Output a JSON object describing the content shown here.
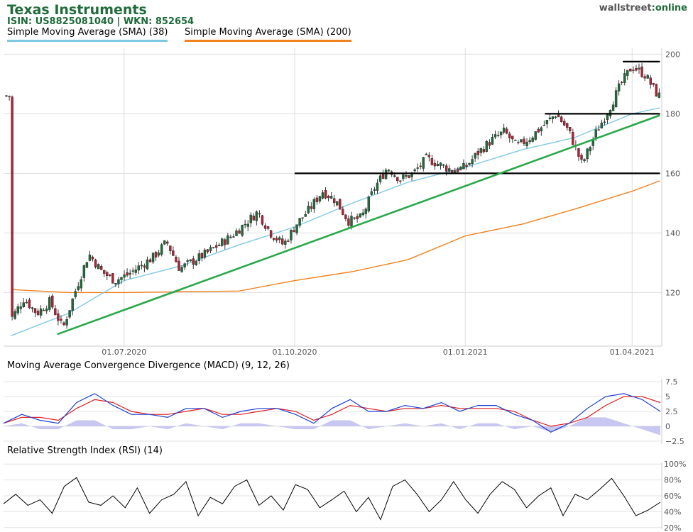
{
  "header": {
    "title": "Texas Instruments",
    "isin_line": "ISIN: US8825081040  | WKN: 852654",
    "sma38_label": "Simple Moving Average (SMA) (38)",
    "sma200_label": "Simple Moving Average (SMA) (200)",
    "logo_part1": "wallstreet",
    "logo_part2": ":online"
  },
  "colors": {
    "brand": "#1f6b3a",
    "up": "#1f6b3a",
    "down": "#b22234",
    "sma38": "#7ec8e3",
    "sma200": "#f0821e",
    "trendline": "#2aa84a",
    "macd": "#1f3fd6",
    "signal": "#e02020",
    "histogram": "#c7c7f2",
    "rsi": "#000000"
  },
  "chart_data": [
    {
      "type": "candlestick",
      "title": "Texas Instruments",
      "x_tick_labels": [
        "01.07.2020",
        "01.10.2020",
        "01.01.2021",
        "01.04.2021"
      ],
      "y_ticks": [
        120,
        140,
        160,
        180,
        200
      ],
      "ylim": [
        102,
        202
      ],
      "grid": true,
      "price_path": [
        {
          "date": "2020-05-01",
          "close": 111
        },
        {
          "date": "2020-05-08",
          "close": 118
        },
        {
          "date": "2020-05-15",
          "close": 113
        },
        {
          "date": "2020-05-22",
          "close": 117
        },
        {
          "date": "2020-05-29",
          "close": 108
        },
        {
          "date": "2020-06-05",
          "close": 121
        },
        {
          "date": "2020-06-12",
          "close": 133
        },
        {
          "date": "2020-06-19",
          "close": 127
        },
        {
          "date": "2020-06-26",
          "close": 124
        },
        {
          "date": "2020-07-03",
          "close": 126
        },
        {
          "date": "2020-07-17",
          "close": 132
        },
        {
          "date": "2020-07-24",
          "close": 137
        },
        {
          "date": "2020-07-31",
          "close": 128
        },
        {
          "date": "2020-08-14",
          "close": 133
        },
        {
          "date": "2020-08-28",
          "close": 139
        },
        {
          "date": "2020-09-04",
          "close": 143
        },
        {
          "date": "2020-09-11",
          "close": 147
        },
        {
          "date": "2020-09-18",
          "close": 140
        },
        {
          "date": "2020-09-25",
          "close": 136
        },
        {
          "date": "2020-10-02",
          "close": 143
        },
        {
          "date": "2020-10-09",
          "close": 148
        },
        {
          "date": "2020-10-16",
          "close": 154
        },
        {
          "date": "2020-10-23",
          "close": 151
        },
        {
          "date": "2020-10-30",
          "close": 144
        },
        {
          "date": "2020-11-06",
          "close": 145
        },
        {
          "date": "2020-11-13",
          "close": 155
        },
        {
          "date": "2020-11-20",
          "close": 162
        },
        {
          "date": "2020-11-27",
          "close": 158
        },
        {
          "date": "2020-12-04",
          "close": 160
        },
        {
          "date": "2020-12-11",
          "close": 165
        },
        {
          "date": "2020-12-18",
          "close": 163
        },
        {
          "date": "2020-12-25",
          "close": 161
        },
        {
          "date": "2021-01-01",
          "close": 162
        },
        {
          "date": "2021-01-08",
          "close": 167
        },
        {
          "date": "2021-01-15",
          "close": 171
        },
        {
          "date": "2021-01-22",
          "close": 174
        },
        {
          "date": "2021-01-29",
          "close": 169
        },
        {
          "date": "2021-02-05",
          "close": 172
        },
        {
          "date": "2021-02-12",
          "close": 176
        },
        {
          "date": "2021-02-19",
          "close": 180
        },
        {
          "date": "2021-02-26",
          "close": 174
        },
        {
          "date": "2021-03-05",
          "close": 163
        },
        {
          "date": "2021-03-12",
          "close": 173
        },
        {
          "date": "2021-03-19",
          "close": 181
        },
        {
          "date": "2021-03-26",
          "close": 190
        },
        {
          "date": "2021-04-01",
          "close": 196
        },
        {
          "date": "2021-04-08",
          "close": 193
        },
        {
          "date": "2021-04-15",
          "close": 186
        }
      ],
      "sma38_path": [
        {
          "date": "2020-05-01",
          "value": 105.5
        },
        {
          "date": "2020-06-01",
          "value": 113
        },
        {
          "date": "2020-07-01",
          "value": 124
        },
        {
          "date": "2020-08-01",
          "value": 129
        },
        {
          "date": "2020-09-01",
          "value": 136
        },
        {
          "date": "2020-10-01",
          "value": 142
        },
        {
          "date": "2020-11-01",
          "value": 150
        },
        {
          "date": "2020-12-01",
          "value": 157
        },
        {
          "date": "2021-01-01",
          "value": 162
        },
        {
          "date": "2021-02-01",
          "value": 168
        },
        {
          "date": "2021-03-01",
          "value": 172
        },
        {
          "date": "2021-04-01",
          "value": 180
        },
        {
          "date": "2021-04-16",
          "value": 182
        }
      ],
      "sma200_path": [
        {
          "date": "2020-05-01",
          "value": 121
        },
        {
          "date": "2020-06-01",
          "value": 120
        },
        {
          "date": "2020-07-01",
          "value": 120
        },
        {
          "date": "2020-09-01",
          "value": 120.5
        },
        {
          "date": "2020-10-01",
          "value": 124
        },
        {
          "date": "2020-11-01",
          "value": 127
        },
        {
          "date": "2020-12-01",
          "value": 131
        },
        {
          "date": "2021-01-01",
          "value": 139
        },
        {
          "date": "2021-02-01",
          "value": 143
        },
        {
          "date": "2021-03-01",
          "value": 148
        },
        {
          "date": "2021-04-01",
          "value": 154
        },
        {
          "date": "2021-04-16",
          "value": 157.5
        }
      ],
      "horizontal_lines": [
        {
          "from": "2021-03-27",
          "to": "2021-04-16",
          "value": 197.5
        },
        {
          "from": "2021-02-13",
          "to": "2021-04-16",
          "value": 180
        },
        {
          "from": "2020-10-01",
          "to": "2021-04-16",
          "value": 160
        }
      ],
      "trend_line": {
        "from_date": "2020-05-26",
        "from_value": 106,
        "to_date": "2021-04-16",
        "to_value": 179.5
      }
    },
    {
      "type": "line",
      "title": "Moving Average Convergence Divergence (MACD) (9, 12, 26)",
      "y_ticks": [
        7.5,
        5,
        2.5,
        0,
        -2.5
      ],
      "y_tick_labels": [
        "7.5",
        "5",
        "2.5",
        "0",
        "−2.5"
      ],
      "ylim": [
        -3,
        8
      ],
      "macd": [
        0.5,
        2,
        1,
        0.5,
        4,
        5.5,
        3.5,
        2,
        2,
        1.5,
        3,
        3,
        1.5,
        2.5,
        3,
        3,
        2,
        0.5,
        3,
        4.5,
        2.5,
        2.5,
        3.5,
        3,
        4,
        2.5,
        3.5,
        3.5,
        2,
        1,
        -1,
        0.5,
        3,
        5,
        5.5,
        4.5,
        2.5
      ],
      "signal": [
        0.5,
        1.5,
        1.5,
        1,
        3,
        4.5,
        4,
        2.5,
        2,
        2,
        2.5,
        3,
        2,
        2,
        2.5,
        3,
        2.5,
        1,
        2,
        3.5,
        3,
        2.5,
        3,
        3,
        3.5,
        3,
        3,
        3,
        2.5,
        1,
        0,
        0.5,
        1.5,
        3.5,
        5,
        5,
        4
      ]
    },
    {
      "type": "line",
      "title": "Relative Strength Index (RSI) (14)",
      "y_ticks": [
        100,
        80,
        60,
        40,
        20
      ],
      "y_tick_labels": [
        "100%",
        "80%",
        "60%",
        "40%",
        "20%"
      ],
      "ylim": [
        18,
        102
      ],
      "rsi": [
        50,
        62,
        48,
        55,
        38,
        72,
        83,
        52,
        48,
        60,
        45,
        70,
        38,
        55,
        62,
        78,
        35,
        58,
        50,
        72,
        80,
        48,
        60,
        42,
        74,
        68,
        45,
        55,
        66,
        40,
        58,
        30,
        72,
        80,
        62,
        40,
        55,
        78,
        55,
        38,
        62,
        78,
        68,
        45,
        60,
        70,
        35,
        62,
        55,
        68,
        82,
        60,
        35,
        42,
        52
      ]
    }
  ]
}
